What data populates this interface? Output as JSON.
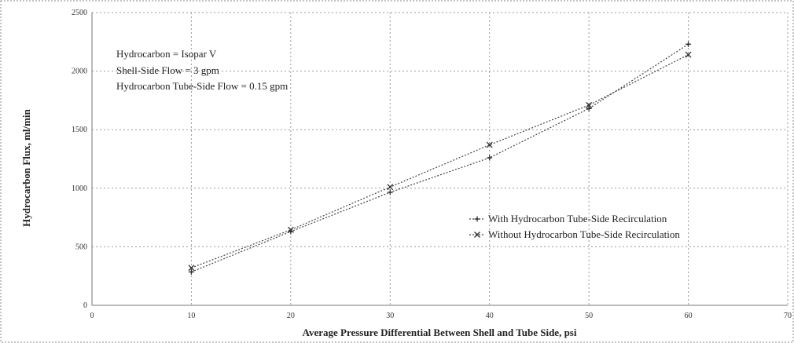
{
  "chart_data": {
    "type": "line",
    "xlabel": "Average Pressure Differential Between Shell and Tube Side, psi",
    "ylabel": "Hydrocarbon Flux, ml/min",
    "xlim": [
      0,
      70
    ],
    "ylim": [
      0,
      2500
    ],
    "x_ticks": [
      0,
      10,
      20,
      30,
      40,
      50,
      60,
      70
    ],
    "y_ticks": [
      0,
      500,
      1000,
      1500,
      2000,
      2500
    ],
    "grid": true,
    "legend_position": "right",
    "annotations": [
      "Hydrocarbon = Isopar V",
      "Shell-Side Flow = 3 gpm",
      "Hydrocarbon Tube-Side Flow = 0.15 gpm"
    ],
    "x": [
      10,
      20,
      30,
      40,
      50,
      60
    ],
    "series": [
      {
        "name": "With Hydrocarbon Tube-Side Recirculation",
        "marker": "plus",
        "values": [
          285,
          630,
          965,
          1260,
          1680,
          2230
        ]
      },
      {
        "name": "Without Hydrocarbon Tube-Side Recirculation",
        "marker": "x",
        "values": [
          320,
          645,
          1010,
          1370,
          1710,
          2140
        ]
      }
    ]
  },
  "colors": {
    "line": "#444444",
    "grid": "#9a9a9a",
    "text": "#222222"
  }
}
